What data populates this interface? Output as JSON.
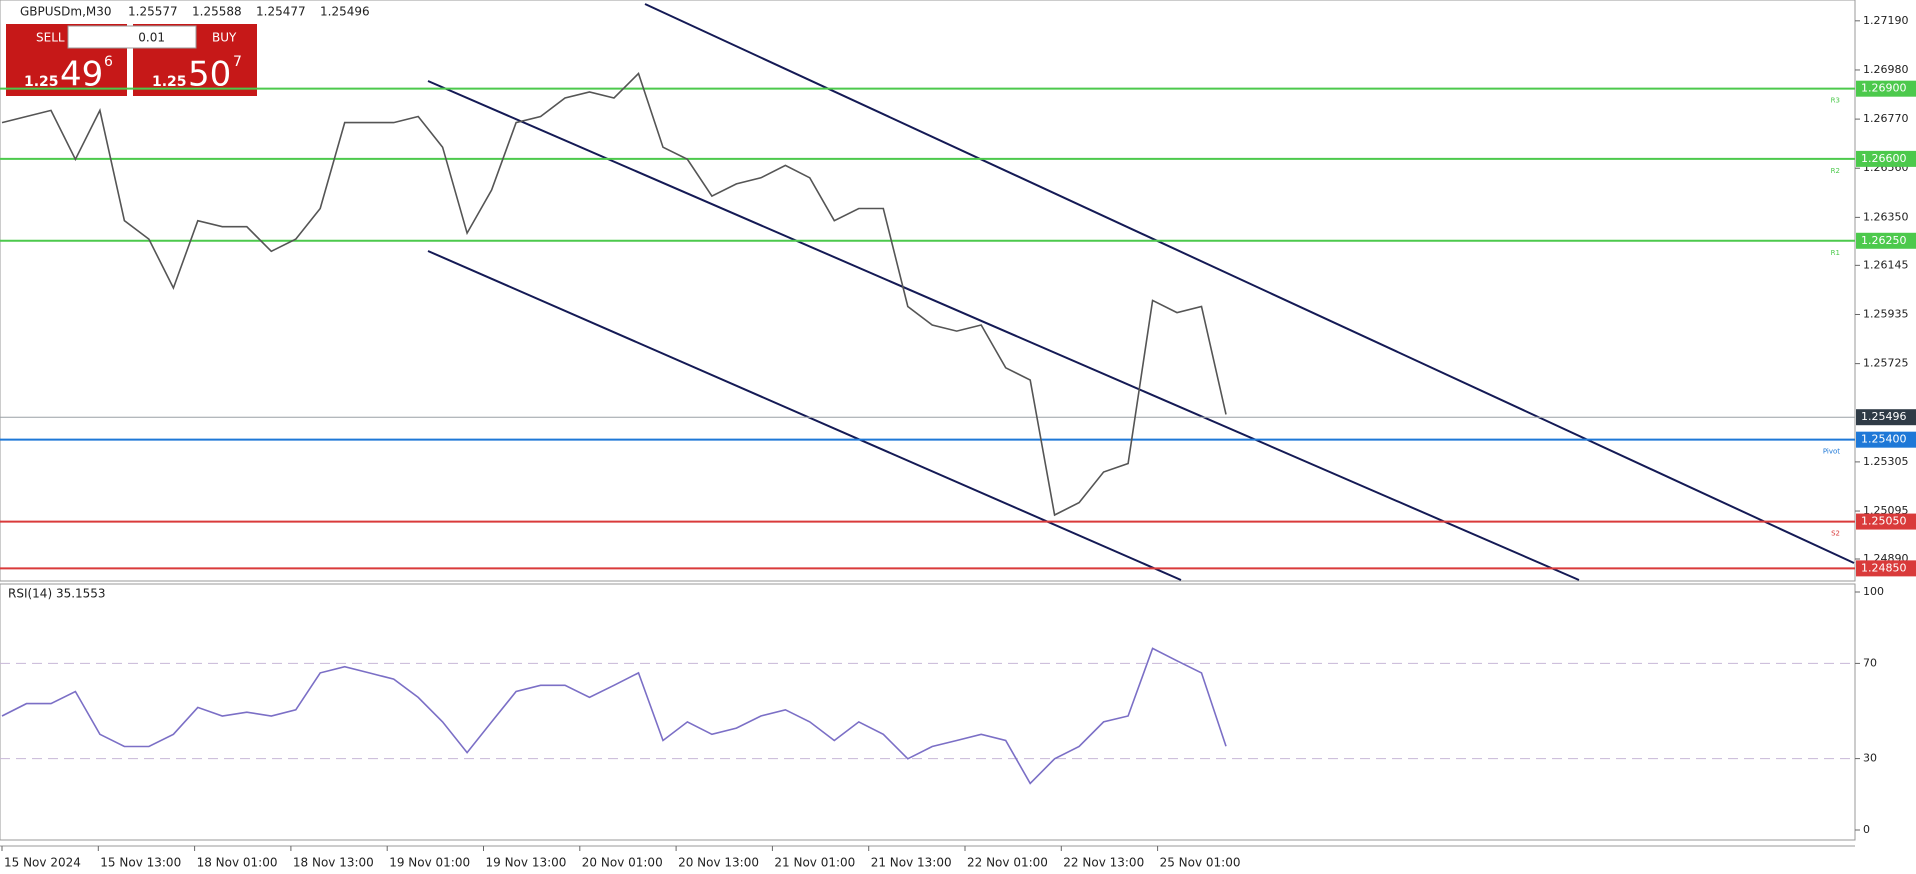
{
  "trade_panel": {
    "sell": "SELL",
    "buy": "BUY",
    "lot": 0.01,
    "bid": {
      "big": 1.25,
      "main": 49,
      "sup": 6
    },
    "ask": {
      "big": 1.25,
      "main": 50,
      "sup": 7
    }
  },
  "chart_data": [
    {
      "type": "line",
      "title": "GBPUSDm,M30",
      "ohlc": [
        1.25577,
        1.25588,
        1.25477,
        1.25496
      ],
      "color": "#555555",
      "x_labels": [
        "15 Nov 2024",
        "15 Nov 13:00",
        "18 Nov 01:00",
        "18 Nov 13:00",
        "19 Nov 01:00",
        "19 Nov 13:00",
        "20 Nov 01:00",
        "20 Nov 13:00",
        "21 Nov 01:00",
        "21 Nov 13:00",
        "22 Nov 01:00",
        "22 Nov 13:00",
        "25 Nov 01:00"
      ],
      "values": [
        1.26755,
        1.26781,
        1.26807,
        1.26598,
        1.26807,
        1.26336,
        1.26257,
        1.26048,
        1.26336,
        1.2631,
        1.2631,
        1.26205,
        1.26257,
        1.26388,
        1.26755,
        1.26755,
        1.26755,
        1.26781,
        1.2665,
        1.26283,
        1.26467,
        1.26755,
        1.26781,
        1.2686,
        1.26886,
        1.2686,
        1.26965,
        1.2665,
        1.26598,
        1.26441,
        1.26493,
        1.26519,
        1.26572,
        1.26519,
        1.26336,
        1.26388,
        1.26388,
        1.25969,
        1.2589,
        1.25864,
        1.2589,
        1.25707,
        1.25655,
        1.25078,
        1.25131,
        1.25262,
        1.25298,
        1.25995,
        1.25943,
        1.25969,
        1.25508
      ],
      "ylim": [
        1.24796,
        1.27279
      ],
      "yticks": [
        {
          "value": 1.2719,
          "label": "1.27190"
        },
        {
          "value": 1.2698,
          "label": "1.26980"
        },
        {
          "value": 1.2677,
          "label": "1.26770"
        },
        {
          "value": 1.2656,
          "label": "1.26560"
        },
        {
          "value": 1.2635,
          "label": "1.26350"
        },
        {
          "value": 1.26145,
          "label": "1.26145"
        },
        {
          "value": 1.25935,
          "label": "1.25935"
        },
        {
          "value": 1.25725,
          "label": "1.25725"
        },
        {
          "value": 1.25305,
          "label": "1.25305"
        },
        {
          "value": 1.25095,
          "label": "1.25095"
        },
        {
          "value": 1.2489,
          "label": "1.24890"
        }
      ],
      "levels": [
        {
          "value": 1.269,
          "label": "1.26900",
          "tag": "R3",
          "color": "#4cc94c"
        },
        {
          "value": 1.266,
          "label": "1.26600",
          "tag": "R2",
          "color": "#4cc94c"
        },
        {
          "value": 1.2625,
          "label": "1.26250",
          "tag": "R1",
          "color": "#4cc94c"
        },
        {
          "value": 1.254,
          "label": "1.25400",
          "tag": "Pivot",
          "color": "#1e78d7"
        },
        {
          "value": 1.2505,
          "label": "1.25050",
          "tag": "S2",
          "color": "#d93a3a"
        },
        {
          "value": 1.2485,
          "label": "1.24850",
          "color": "#d93a3a"
        }
      ],
      "current": {
        "value": 1.25496,
        "label": "1.25496",
        "color": "#2f3b46"
      }
    },
    {
      "type": "line",
      "title": "RSI(14) 35.1553",
      "color": "#7b6fc6",
      "values": [
        47.9,
        53.1,
        53.1,
        58.2,
        40.2,
        35.1,
        35.1,
        40.2,
        51.5,
        47.9,
        49.5,
        47.9,
        50.5,
        66.0,
        68.6,
        66.0,
        63.4,
        55.7,
        45.4,
        32.5,
        45.4,
        58.2,
        60.8,
        60.8,
        55.7,
        60.8,
        66.0,
        37.6,
        45.4,
        40.2,
        42.8,
        47.9,
        50.5,
        45.4,
        37.6,
        45.4,
        40.2,
        29.9,
        35.1,
        37.6,
        40.2,
        37.6,
        19.6,
        29.9,
        35.1,
        45.4,
        47.9,
        76.3,
        71.1,
        66.0,
        35.2
      ],
      "ylim": [
        0,
        100
      ],
      "yticks": [
        100,
        70,
        30,
        0
      ],
      "dashed": [
        70,
        30
      ]
    }
  ]
}
